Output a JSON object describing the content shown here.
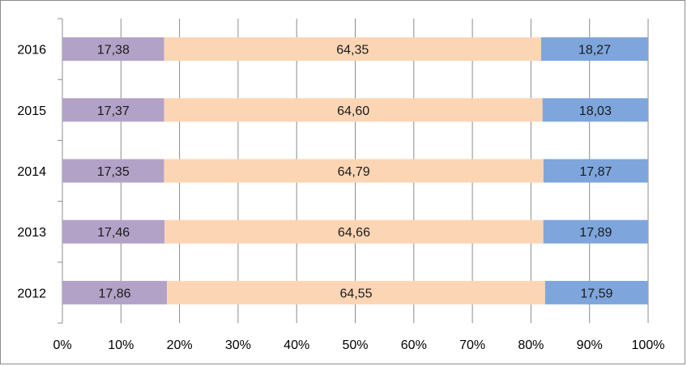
{
  "chart_data": {
    "type": "bar",
    "orientation": "horizontal",
    "stacked": "percent",
    "categories": [
      "2016",
      "2015",
      "2014",
      "2013",
      "2012"
    ],
    "series": [
      {
        "values": [
          17.38,
          17.37,
          17.35,
          17.46,
          17.86
        ],
        "labels": [
          "17,38",
          "17,37",
          "17,35",
          "17,46",
          "17,86"
        ],
        "color": "#b3a2c7"
      },
      {
        "values": [
          64.35,
          64.6,
          64.79,
          64.66,
          64.55
        ],
        "labels": [
          "64,35",
          "64,60",
          "64,79",
          "64,66",
          "64,55"
        ],
        "color": "#fcd5b5"
      },
      {
        "values": [
          18.27,
          18.03,
          17.87,
          17.89,
          17.59
        ],
        "labels": [
          "18,27",
          "18,03",
          "17,87",
          "17,89",
          "17,59"
        ],
        "color": "#7ea6dc"
      }
    ],
    "xticks": [
      "0%",
      "10%",
      "20%",
      "30%",
      "40%",
      "50%",
      "60%",
      "70%",
      "80%",
      "90%",
      "100%"
    ],
    "xlim": [
      0,
      100
    ],
    "grid": true,
    "legend": "none",
    "title": "",
    "xlabel": "",
    "ylabel": ""
  }
}
